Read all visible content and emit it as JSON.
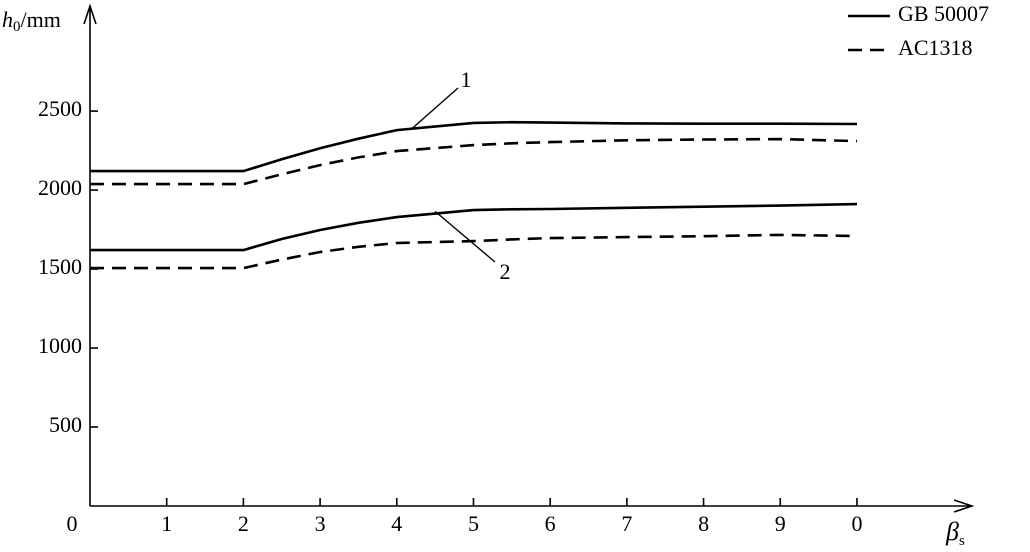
{
  "chart_data": {
    "type": "line",
    "y_label": {
      "symbol": "h",
      "subscript": "0",
      "unit": "/mm"
    },
    "x_label": {
      "symbol": "β",
      "subscript": "s"
    },
    "x": [
      0,
      2,
      2.5,
      3,
      3.5,
      4,
      5,
      5.5,
      6,
      7,
      8,
      9,
      10
    ],
    "curve_labels": [
      "1",
      "2"
    ],
    "series": [
      {
        "name": "GB 50007",
        "color": "#000000",
        "dashed": false,
        "values": [
          [
            2120,
            2120,
            2195,
            2265,
            2325,
            2380,
            2425,
            2430,
            2427,
            2422,
            2420,
            2420,
            2418
          ],
          [
            1620,
            1620,
            1690,
            1747,
            1793,
            1829,
            1873,
            1878,
            1880,
            1888,
            1895,
            1902,
            1911
          ]
        ]
      },
      {
        "name": "AC1318",
        "color": "#000000",
        "dashed": true,
        "values": [
          [
            2038,
            2038,
            2100,
            2158,
            2207,
            2247,
            2285,
            2296,
            2304,
            2315,
            2320,
            2323,
            2310
          ],
          [
            1506,
            1506,
            1560,
            1608,
            1641,
            1665,
            1677,
            1688,
            1696,
            1702,
            1708,
            1716,
            1709
          ]
        ]
      }
    ],
    "xlim": [
      0,
      11.5
    ],
    "ylim": [
      0,
      3140
    ],
    "xticks": [
      0,
      1,
      2,
      3,
      4,
      5,
      6,
      7,
      8,
      9,
      {
        "value": 10,
        "label": "0"
      }
    ],
    "yticks": [
      500,
      1000,
      1500,
      2000,
      2500
    ],
    "grid": false,
    "legend": "top-right"
  }
}
